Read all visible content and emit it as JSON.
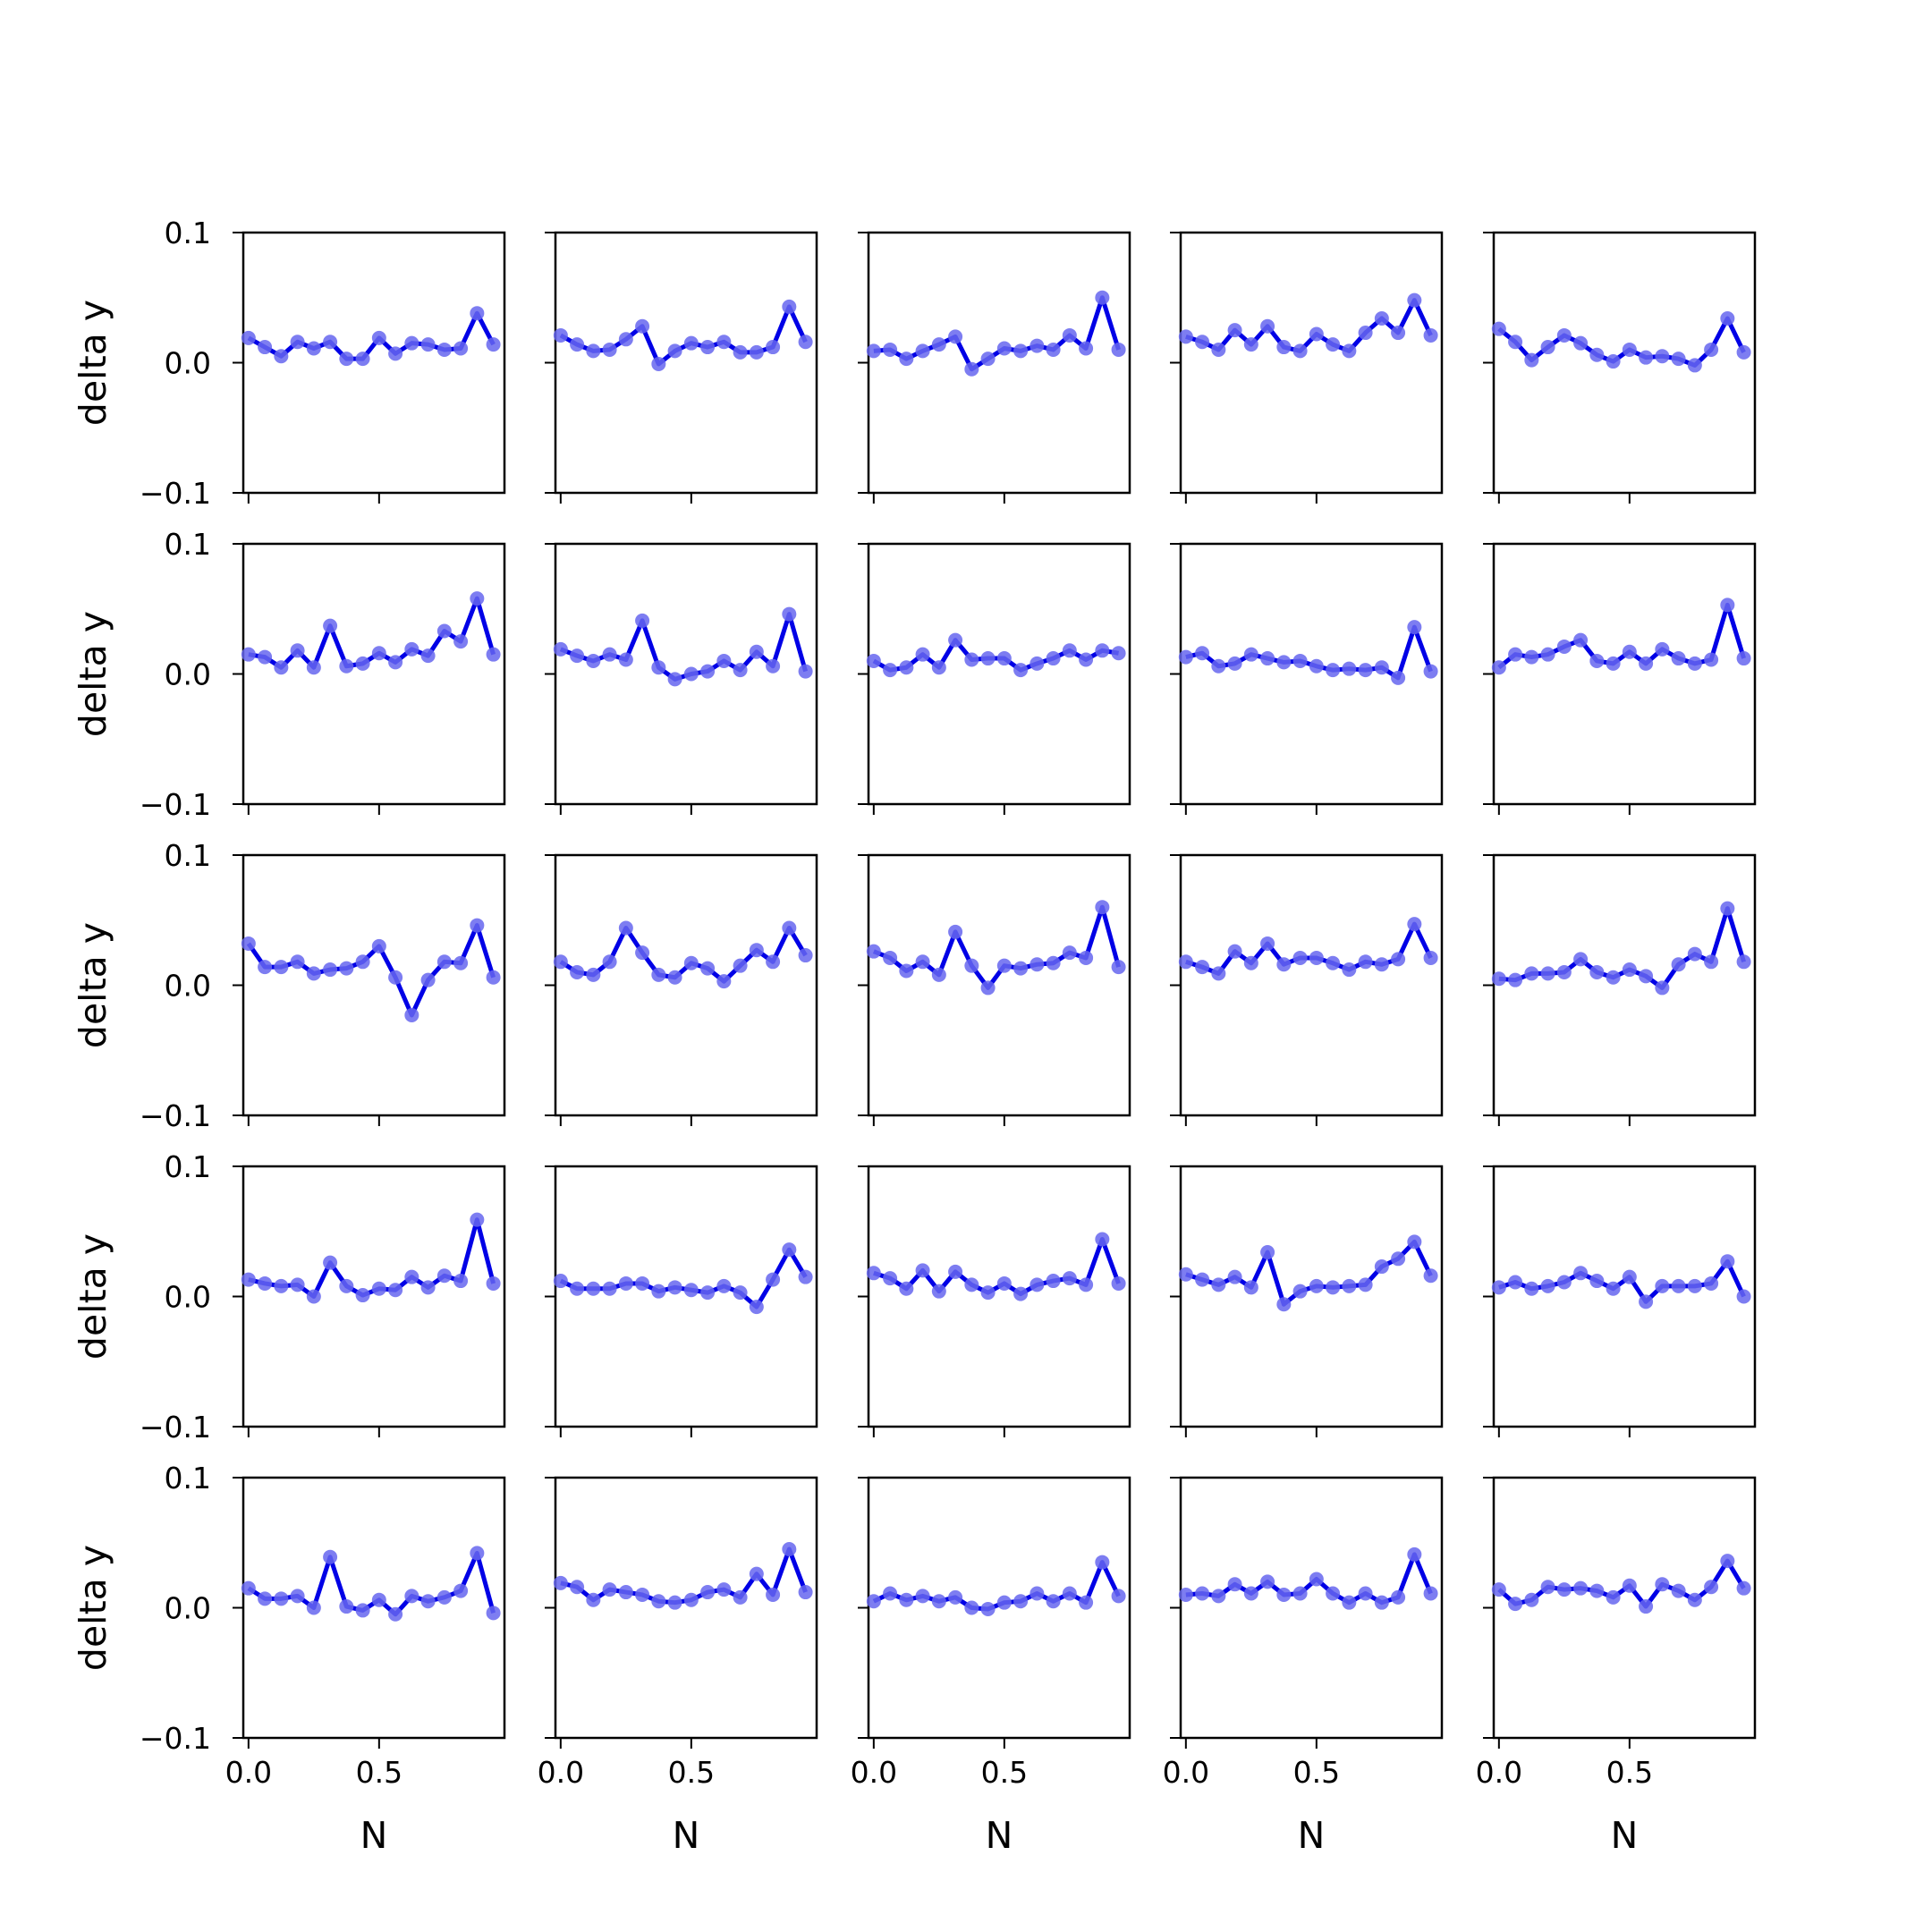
{
  "chart_data": {
    "type": "line",
    "layout": {
      "rows": 5,
      "cols": 5
    },
    "x": [
      0.0,
      0.0625,
      0.125,
      0.1875,
      0.25,
      0.3125,
      0.375,
      0.4375,
      0.5,
      0.5625,
      0.625,
      0.6875,
      0.75,
      0.8125,
      0.875,
      0.9375
    ],
    "xlim": [
      -0.02,
      0.98
    ],
    "ylim": [
      -0.1,
      0.1
    ],
    "x_ticks": [
      0.0,
      0.5
    ],
    "x_tick_labels": [
      "0.0",
      "0.5"
    ],
    "y_ticks": [
      0.1,
      0.0,
      -0.1
    ],
    "y_tick_labels": [
      "0.1",
      "0.0",
      "−0.1"
    ],
    "xlabel": "N",
    "ylabel": "delta y",
    "line_color": "#0000e6",
    "marker_color": "#6666ee",
    "grid": false,
    "legend": "none",
    "panels": [
      {
        "values": [
          0.019,
          0.012,
          0.005,
          0.016,
          0.011,
          0.016,
          0.003,
          0.003,
          0.019,
          0.007,
          0.015,
          0.014,
          0.01,
          0.011,
          0.038,
          0.014
        ]
      },
      {
        "values": [
          0.021,
          0.014,
          0.009,
          0.01,
          0.018,
          0.028,
          -0.001,
          0.009,
          0.015,
          0.012,
          0.016,
          0.008,
          0.008,
          0.012,
          0.043,
          0.016
        ]
      },
      {
        "values": [
          0.009,
          0.01,
          0.003,
          0.009,
          0.014,
          0.02,
          -0.005,
          0.003,
          0.011,
          0.009,
          0.013,
          0.01,
          0.021,
          0.011,
          0.05,
          0.01
        ]
      },
      {
        "values": [
          0.02,
          0.016,
          0.01,
          0.025,
          0.014,
          0.028,
          0.012,
          0.009,
          0.022,
          0.014,
          0.009,
          0.023,
          0.034,
          0.023,
          0.048,
          0.021
        ]
      },
      {
        "values": [
          0.026,
          0.016,
          0.002,
          0.012,
          0.021,
          0.015,
          0.006,
          0.001,
          0.01,
          0.004,
          0.005,
          0.003,
          -0.002,
          0.01,
          0.034,
          0.008
        ]
      },
      {
        "values": [
          0.015,
          0.013,
          0.005,
          0.018,
          0.005,
          0.037,
          0.006,
          0.008,
          0.016,
          0.009,
          0.019,
          0.014,
          0.033,
          0.025,
          0.058,
          0.015
        ]
      },
      {
        "values": [
          0.019,
          0.014,
          0.01,
          0.015,
          0.011,
          0.041,
          0.005,
          -0.004,
          0.0,
          0.002,
          0.01,
          0.003,
          0.017,
          0.006,
          0.046,
          0.002
        ]
      },
      {
        "values": [
          0.01,
          0.003,
          0.005,
          0.015,
          0.005,
          0.026,
          0.011,
          0.012,
          0.012,
          0.003,
          0.008,
          0.012,
          0.018,
          0.011,
          0.018,
          0.016
        ]
      },
      {
        "values": [
          0.013,
          0.016,
          0.006,
          0.008,
          0.015,
          0.012,
          0.009,
          0.01,
          0.006,
          0.003,
          0.004,
          0.003,
          0.005,
          -0.003,
          0.036,
          0.002
        ]
      },
      {
        "values": [
          0.005,
          0.015,
          0.013,
          0.015,
          0.021,
          0.026,
          0.01,
          0.008,
          0.017,
          0.008,
          0.019,
          0.012,
          0.008,
          0.011,
          0.053,
          0.012
        ]
      },
      {
        "values": [
          0.032,
          0.014,
          0.014,
          0.018,
          0.009,
          0.012,
          0.013,
          0.018,
          0.03,
          0.006,
          -0.023,
          0.004,
          0.018,
          0.017,
          0.046,
          0.006
        ]
      },
      {
        "values": [
          0.018,
          0.01,
          0.008,
          0.018,
          0.044,
          0.025,
          0.008,
          0.006,
          0.017,
          0.013,
          0.003,
          0.015,
          0.027,
          0.018,
          0.044,
          0.023
        ]
      },
      {
        "values": [
          0.026,
          0.021,
          0.011,
          0.018,
          0.008,
          0.041,
          0.015,
          -0.002,
          0.015,
          0.013,
          0.016,
          0.017,
          0.025,
          0.021,
          0.06,
          0.014
        ]
      },
      {
        "values": [
          0.018,
          0.014,
          0.009,
          0.026,
          0.017,
          0.032,
          0.016,
          0.021,
          0.021,
          0.017,
          0.012,
          0.018,
          0.016,
          0.02,
          0.047,
          0.021
        ]
      },
      {
        "values": [
          0.005,
          0.004,
          0.009,
          0.009,
          0.01,
          0.02,
          0.01,
          0.006,
          0.012,
          0.007,
          -0.002,
          0.016,
          0.024,
          0.018,
          0.059,
          0.018
        ]
      },
      {
        "values": [
          0.013,
          0.01,
          0.008,
          0.009,
          0.0,
          0.026,
          0.008,
          0.001,
          0.006,
          0.005,
          0.015,
          0.007,
          0.016,
          0.012,
          0.059,
          0.01
        ]
      },
      {
        "values": [
          0.012,
          0.006,
          0.006,
          0.006,
          0.01,
          0.01,
          0.004,
          0.007,
          0.005,
          0.003,
          0.008,
          0.003,
          -0.008,
          0.013,
          0.036,
          0.015
        ]
      },
      {
        "values": [
          0.018,
          0.014,
          0.006,
          0.02,
          0.004,
          0.019,
          0.009,
          0.003,
          0.01,
          0.002,
          0.009,
          0.012,
          0.014,
          0.009,
          0.044,
          0.01
        ]
      },
      {
        "values": [
          0.017,
          0.013,
          0.009,
          0.015,
          0.007,
          0.034,
          -0.006,
          0.004,
          0.008,
          0.007,
          0.008,
          0.009,
          0.023,
          0.029,
          0.042,
          0.016
        ]
      },
      {
        "values": [
          0.007,
          0.011,
          0.006,
          0.008,
          0.011,
          0.018,
          0.012,
          0.006,
          0.015,
          -0.004,
          0.008,
          0.008,
          0.008,
          0.01,
          0.027,
          0.0
        ]
      },
      {
        "values": [
          0.015,
          0.007,
          0.007,
          0.009,
          0.0,
          0.039,
          0.001,
          -0.002,
          0.006,
          -0.005,
          0.009,
          0.005,
          0.008,
          0.013,
          0.042,
          -0.004
        ]
      },
      {
        "values": [
          0.019,
          0.016,
          0.006,
          0.014,
          0.012,
          0.01,
          0.005,
          0.004,
          0.006,
          0.012,
          0.014,
          0.008,
          0.026,
          0.01,
          0.045,
          0.012
        ]
      },
      {
        "values": [
          0.005,
          0.011,
          0.006,
          0.009,
          0.005,
          0.008,
          0.0,
          -0.001,
          0.004,
          0.005,
          0.011,
          0.005,
          0.011,
          0.004,
          0.035,
          0.009
        ]
      },
      {
        "values": [
          0.01,
          0.011,
          0.009,
          0.018,
          0.011,
          0.02,
          0.01,
          0.011,
          0.022,
          0.011,
          0.004,
          0.011,
          0.004,
          0.008,
          0.041,
          0.011
        ]
      },
      {
        "values": [
          0.014,
          0.003,
          0.006,
          0.016,
          0.014,
          0.015,
          0.013,
          0.008,
          0.017,
          0.001,
          0.018,
          0.013,
          0.006,
          0.016,
          0.036,
          0.015
        ]
      }
    ]
  }
}
